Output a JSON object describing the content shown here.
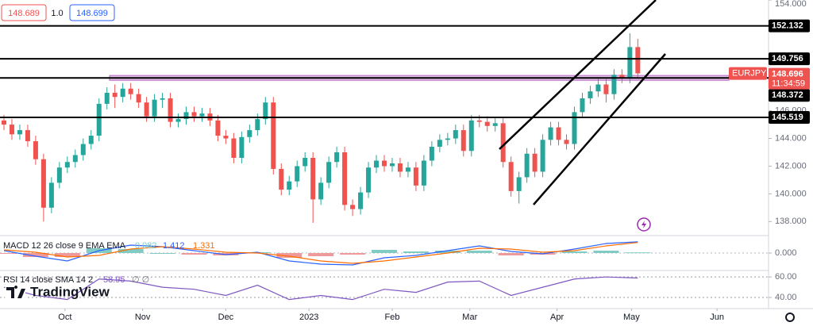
{
  "header": {
    "bid": 148.689,
    "spread": "1.0",
    "ask": 148.699,
    "brand": "TradingView"
  },
  "chart_data": [
    {
      "type": "candlestick",
      "symbol": "EURJPY",
      "last_price": 148.696,
      "countdown": "11:34:59",
      "up_color": "#26a69a",
      "down_color": "#ef5350",
      "xlim": [
        -0.5,
        96.5
      ],
      "ylim": [
        137.1,
        154.0
      ],
      "yticks": [
        {
          "value": 138,
          "label": "138.000"
        },
        {
          "value": 140,
          "label": "140.000"
        },
        {
          "value": 142,
          "label": "142.000"
        },
        {
          "value": 144,
          "label": "144.000"
        },
        {
          "value": 146,
          "label": "146.000"
        },
        {
          "value": 154,
          "label": "154.000"
        }
      ],
      "xticks": [
        {
          "value": 7.7,
          "label": "Oct"
        },
        {
          "value": 17.5,
          "label": "Nov"
        },
        {
          "value": 28,
          "label": "Dec"
        },
        {
          "value": 38.5,
          "label": "2023"
        },
        {
          "value": 49,
          "label": "Feb"
        },
        {
          "value": 58.8,
          "label": "Mar"
        },
        {
          "value": 69.8,
          "label": "Apr"
        },
        {
          "value": 79.2,
          "label": "May"
        },
        {
          "value": 90,
          "label": "Jun"
        }
      ],
      "levels": [
        152.132,
        149.756,
        148.372,
        145.519
      ],
      "zone": [
        148.2,
        148.55
      ],
      "zone_color": "#ba68c8",
      "candles": [
        [
          145.3,
          145.7,
          144.6,
          145.0
        ],
        [
          145.0,
          145.4,
          143.9,
          144.3
        ],
        [
          144.3,
          145.0,
          143.9,
          144.6
        ],
        [
          144.6,
          145.0,
          143.4,
          143.8
        ],
        [
          143.8,
          144.2,
          142.1,
          142.5
        ],
        [
          142.5,
          142.9,
          138.0,
          139.0
        ],
        [
          139.0,
          141.2,
          138.6,
          140.8
        ],
        [
          140.8,
          142.3,
          140.4,
          141.9
        ],
        [
          141.9,
          142.7,
          141.5,
          142.3
        ],
        [
          142.3,
          143.2,
          141.9,
          142.8
        ],
        [
          142.8,
          144.0,
          142.4,
          143.6
        ],
        [
          143.6,
          144.6,
          143.2,
          144.2
        ],
        [
          144.2,
          146.9,
          143.8,
          146.5
        ],
        [
          146.5,
          147.7,
          146.1,
          147.3
        ],
        [
          147.3,
          147.9,
          146.2,
          147.0
        ],
        [
          147.0,
          148.0,
          146.6,
          147.6
        ],
        [
          147.6,
          148.0,
          146.8,
          147.2
        ],
        [
          147.2,
          147.6,
          146.2,
          146.6
        ],
        [
          146.6,
          147.0,
          145.2,
          145.6
        ],
        [
          145.6,
          147.2,
          145.2,
          146.8
        ],
        [
          146.8,
          147.3,
          146.2,
          146.9
        ],
        [
          146.9,
          147.3,
          144.8,
          145.2
        ],
        [
          145.2,
          145.8,
          144.8,
          145.4
        ],
        [
          145.4,
          146.3,
          145.0,
          145.9
        ],
        [
          145.9,
          146.3,
          145.2,
          145.6
        ],
        [
          145.6,
          146.2,
          145.2,
          145.8
        ],
        [
          145.8,
          146.2,
          144.9,
          145.3
        ],
        [
          145.3,
          145.7,
          143.8,
          144.2
        ],
        [
          144.2,
          144.6,
          143.6,
          144.0
        ],
        [
          144.0,
          144.4,
          142.2,
          142.6
        ],
        [
          142.6,
          144.5,
          142.2,
          144.1
        ],
        [
          144.1,
          145.0,
          143.7,
          144.6
        ],
        [
          144.6,
          145.8,
          144.2,
          145.4
        ],
        [
          145.4,
          147.0,
          145.0,
          146.6
        ],
        [
          146.6,
          147.0,
          141.4,
          141.8
        ],
        [
          141.8,
          142.2,
          139.9,
          140.3
        ],
        [
          140.3,
          141.3,
          139.9,
          140.9
        ],
        [
          140.9,
          142.4,
          140.5,
          142.0
        ],
        [
          142.0,
          143.0,
          141.6,
          142.6
        ],
        [
          142.6,
          143.0,
          137.9,
          139.6
        ],
        [
          139.6,
          141.2,
          139.2,
          140.8
        ],
        [
          140.8,
          142.7,
          140.4,
          142.3
        ],
        [
          142.3,
          143.4,
          141.9,
          143.0
        ],
        [
          143.0,
          143.4,
          138.8,
          139.2
        ],
        [
          139.2,
          139.6,
          138.4,
          138.9
        ],
        [
          138.9,
          140.5,
          138.5,
          140.1
        ],
        [
          140.1,
          142.3,
          139.7,
          141.9
        ],
        [
          141.9,
          142.8,
          141.5,
          142.4
        ],
        [
          142.4,
          142.8,
          141.6,
          142.0
        ],
        [
          142.0,
          142.6,
          141.6,
          142.2
        ],
        [
          142.2,
          142.6,
          141.2,
          141.6
        ],
        [
          141.6,
          142.3,
          141.2,
          141.9
        ],
        [
          141.9,
          142.3,
          140.2,
          140.6
        ],
        [
          140.6,
          142.8,
          140.2,
          142.4
        ],
        [
          142.4,
          143.8,
          142.0,
          143.4
        ],
        [
          143.4,
          144.3,
          143.0,
          143.9
        ],
        [
          143.9,
          144.4,
          143.5,
          144.0
        ],
        [
          144.0,
          145.0,
          143.6,
          144.6
        ],
        [
          144.6,
          145.0,
          142.7,
          143.1
        ],
        [
          143.1,
          145.7,
          142.7,
          145.3
        ],
        [
          145.3,
          145.7,
          144.8,
          145.2
        ],
        [
          145.2,
          145.6,
          144.5,
          144.9
        ],
        [
          144.9,
          145.5,
          144.5,
          145.1
        ],
        [
          145.1,
          145.5,
          141.9,
          142.3
        ],
        [
          142.3,
          142.7,
          139.8,
          140.2
        ],
        [
          140.2,
          141.6,
          139.3,
          141.2
        ],
        [
          141.2,
          143.3,
          140.8,
          142.9
        ],
        [
          142.9,
          143.3,
          141.2,
          141.6
        ],
        [
          141.6,
          144.3,
          141.2,
          143.9
        ],
        [
          143.9,
          145.2,
          143.5,
          144.8
        ],
        [
          144.8,
          145.2,
          143.5,
          143.9
        ],
        [
          143.9,
          144.3,
          143.2,
          143.6
        ],
        [
          143.6,
          146.3,
          143.2,
          145.9
        ],
        [
          145.9,
          147.3,
          145.5,
          146.9
        ],
        [
          146.9,
          147.8,
          146.5,
          147.4
        ],
        [
          147.4,
          148.3,
          147.0,
          147.9
        ],
        [
          147.9,
          148.3,
          146.6,
          147.2
        ],
        [
          147.2,
          149.0,
          146.8,
          148.6
        ],
        [
          148.6,
          149.0,
          148.0,
          148.4
        ],
        [
          148.4,
          151.6,
          148.0,
          150.6
        ],
        [
          150.6,
          151.2,
          148.3,
          148.7
        ]
      ]
    },
    {
      "type": "macd",
      "legend": "MACD 12 26 close 9 EMA EMA",
      "xlim": [
        -0.5,
        96.5
      ],
      "ylim": [
        -2,
        2
      ],
      "yticks": [
        {
          "value": 0,
          "label": "0.000"
        }
      ],
      "x": [
        0,
        4,
        8,
        12,
        16,
        20,
        24,
        28,
        32,
        36,
        40,
        44,
        48,
        52,
        56,
        60,
        64,
        68,
        72,
        76,
        80
      ],
      "histogram": {
        "up_color": "#80cbc4",
        "down_color": "#ef9a9a",
        "values": [
          -0.1,
          -0.5,
          -0.5,
          0.6,
          0.5,
          0.0,
          -0.2,
          -0.3,
          0.1,
          -0.6,
          -0.4,
          -0.2,
          0.4,
          0.2,
          0.3,
          0.3,
          -0.3,
          -0.2,
          0.2,
          0.3,
          0.082
        ]
      },
      "series": [
        {
          "color": "#2962ff",
          "values": [
            0.3,
            -0.4,
            -1.0,
            0.3,
            1.0,
            0.8,
            0.3,
            -0.2,
            0.1,
            -1.0,
            -1.4,
            -1.5,
            -0.6,
            -0.3,
            0.3,
            0.9,
            0.2,
            -0.1,
            0.5,
            1.2,
            1.412
          ]
        },
        {
          "color": "#ff6d00",
          "values": [
            0.4,
            0.1,
            -0.5,
            -0.3,
            0.5,
            0.8,
            0.5,
            0.1,
            0.0,
            -0.4,
            -1.0,
            -1.3,
            -1.0,
            -0.5,
            0.0,
            0.6,
            0.5,
            0.1,
            0.3,
            0.9,
            1.331
          ]
        }
      ]
    },
    {
      "type": "line",
      "legend": "RSI 14 close SMA 14 2",
      "legend_extra": "∅ ∅",
      "xlim": [
        -0.5,
        96.5
      ],
      "ylim": [
        30,
        64
      ],
      "yticks": [
        {
          "value": 40,
          "label": "40.00"
        },
        {
          "value": 60,
          "label": "60.00"
        }
      ],
      "x": [
        0,
        4,
        8,
        12,
        16,
        20,
        24,
        28,
        32,
        36,
        40,
        44,
        48,
        52,
        56,
        60,
        64,
        68,
        72,
        76,
        80
      ],
      "series": [
        {
          "color": "#7e57c2",
          "values": [
            50,
            42,
            38,
            58,
            56,
            50,
            48,
            42,
            52,
            38,
            42,
            38,
            48,
            45,
            55,
            56,
            42,
            50,
            58,
            60,
            58.95
          ]
        }
      ]
    }
  ]
}
